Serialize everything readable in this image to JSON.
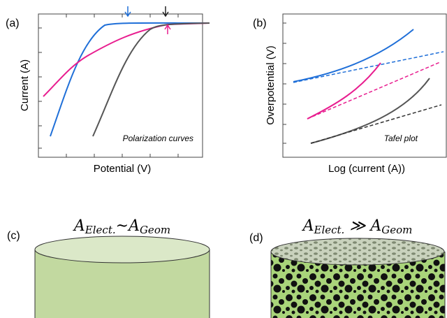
{
  "panel_a": {
    "label": "(a)",
    "y_label": "Current (A)",
    "x_label": "Potential (V)",
    "annotation": "Polarization curves"
  },
  "panel_b": {
    "label": "(b)",
    "y_label": "Overpotential (V)",
    "x_label": "Log (current (A))",
    "annotation": "Tafel plot"
  },
  "panel_c": {
    "label": "(c)",
    "formula": {
      "lhs": "A",
      "lhs_sub": "Elect.",
      "op": "~",
      "rhs": "A",
      "rhs_sub": "Geom"
    }
  },
  "panel_d": {
    "label": "(d)",
    "formula": {
      "lhs": "A",
      "lhs_sub": "Elect.",
      "op": " ≫ ",
      "rhs": "A",
      "rhs_sub": "Geom"
    }
  }
}
